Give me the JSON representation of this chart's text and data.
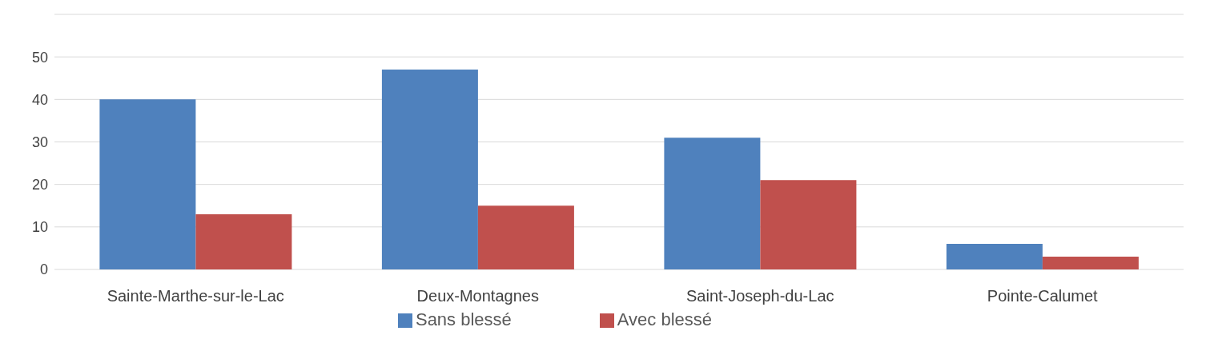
{
  "chart_data": {
    "type": "bar",
    "categories": [
      "Sainte-Marthe-sur-le-Lac",
      "Deux-Montagnes",
      "Saint-Joseph-du-Lac",
      "Pointe-Calumet"
    ],
    "series": [
      {
        "name": "Sans blessé",
        "color": "#4f81bd",
        "values": [
          40,
          47,
          31,
          6
        ]
      },
      {
        "name": "Avec blessé",
        "color": "#c0504d",
        "values": [
          13,
          15,
          21,
          3
        ]
      }
    ],
    "ylim": [
      0,
      60
    ],
    "yticks": [
      0,
      10,
      20,
      30,
      40,
      50,
      {
        "value": 60,
        "label": null
      }
    ],
    "grid": "y",
    "legend": "bottom"
  }
}
